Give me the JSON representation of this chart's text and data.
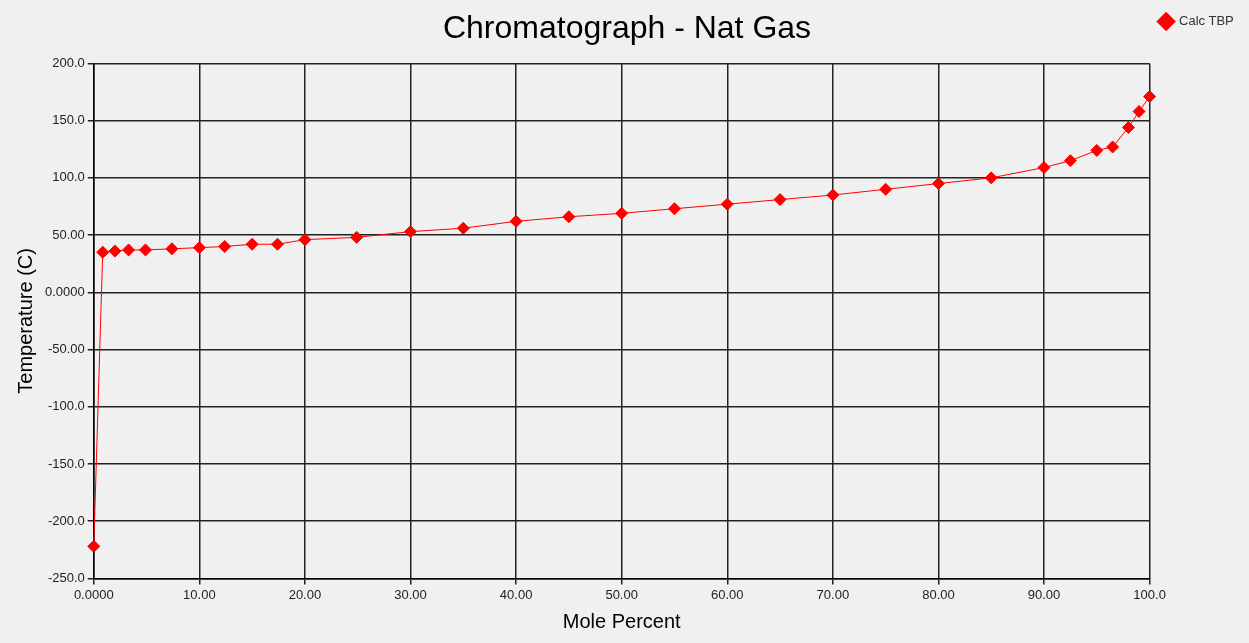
{
  "chart_data": {
    "type": "line",
    "title": "Chromatograph - Nat Gas",
    "xlabel": "Mole Percent",
    "ylabel": "Temperature (C)",
    "series": [
      {
        "name": "Calc TBP",
        "color": "#ff0000",
        "x": [
          0,
          0.85,
          2.0,
          3.3,
          4.9,
          7.4,
          10,
          12.4,
          15,
          17.4,
          20,
          24.9,
          30,
          35,
          40,
          45,
          50,
          55,
          60,
          65,
          70,
          75,
          80,
          85,
          90,
          92.5,
          95,
          96.5,
          98,
          99,
          100
        ],
        "values": [
          -222,
          35,
          36,
          37,
          37,
          38,
          39,
          40,
          42,
          42,
          46,
          48,
          53,
          56,
          62,
          66,
          69,
          73,
          77,
          81,
          85,
          90,
          95,
          100,
          109,
          115,
          124,
          127,
          144,
          158,
          171
        ]
      }
    ],
    "xlim": [
      0,
      100
    ],
    "ylim": [
      -250,
      200
    ],
    "xticks": [
      {
        "value": 0,
        "label": "0.0000"
      },
      {
        "value": 10,
        "label": "10.00"
      },
      {
        "value": 20,
        "label": "20.00"
      },
      {
        "value": 30,
        "label": "30.00"
      },
      {
        "value": 40,
        "label": "40.00"
      },
      {
        "value": 50,
        "label": "50.00"
      },
      {
        "value": 60,
        "label": "60.00"
      },
      {
        "value": 70,
        "label": "70.00"
      },
      {
        "value": 80,
        "label": "80.00"
      },
      {
        "value": 90,
        "label": "90.00"
      },
      {
        "value": 100,
        "label": "100.0"
      }
    ],
    "yticks": [
      {
        "value": -250,
        "label": "-250.0"
      },
      {
        "value": -200,
        "label": "-200.0"
      },
      {
        "value": -150,
        "label": "-150.0"
      },
      {
        "value": -100,
        "label": "-100.0"
      },
      {
        "value": -50,
        "label": "-50.00"
      },
      {
        "value": 0,
        "label": "0.0000"
      },
      {
        "value": 50,
        "label": "50.00"
      },
      {
        "value": 100,
        "label": "100.0"
      },
      {
        "value": 150,
        "label": "150.0"
      },
      {
        "value": 200,
        "label": "200.0"
      }
    ],
    "grid": true,
    "legend": "right",
    "marker": "diamond",
    "line_style": "solid"
  }
}
